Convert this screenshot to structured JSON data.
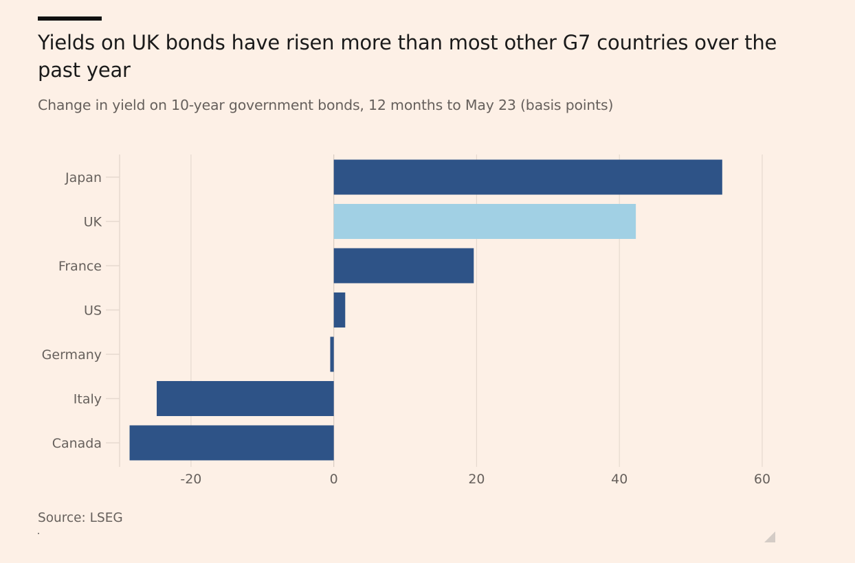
{
  "header": {
    "title": "Yields on UK bonds have risen more than most other G7 countries over the past year",
    "subtitle": "Change in yield on 10-year government bonds, 12 months to May 23 (basis points)"
  },
  "footer": {
    "source": "Source: LSEG"
  },
  "colors": {
    "background": "#fdf0e6",
    "bar_default": "#2e5387",
    "bar_highlight": "#a1d0e4",
    "gridline": "#e6d9cf",
    "text_muted": "#66605c"
  },
  "chart_data": {
    "type": "bar",
    "orientation": "horizontal",
    "title": "Yields on UK bonds have risen more than most other G7 countries over the past year",
    "subtitle": "Change in yield on 10-year government bonds, 12 months to May 23 (basis points)",
    "xlabel": "",
    "ylabel": "",
    "categories": [
      "Japan",
      "UK",
      "France",
      "US",
      "Germany",
      "Italy",
      "Canada"
    ],
    "values": [
      54.4,
      42.3,
      19.6,
      1.6,
      -0.5,
      -24.8,
      -28.6
    ],
    "highlight": "UK",
    "xlim": [
      -30,
      60
    ],
    "xticks": [
      -20,
      0,
      20,
      40,
      60
    ],
    "xtick_labels": [
      "-20",
      "0",
      "20",
      "40",
      "60"
    ],
    "grid": true,
    "legend": "none",
    "source": "Source: LSEG"
  }
}
